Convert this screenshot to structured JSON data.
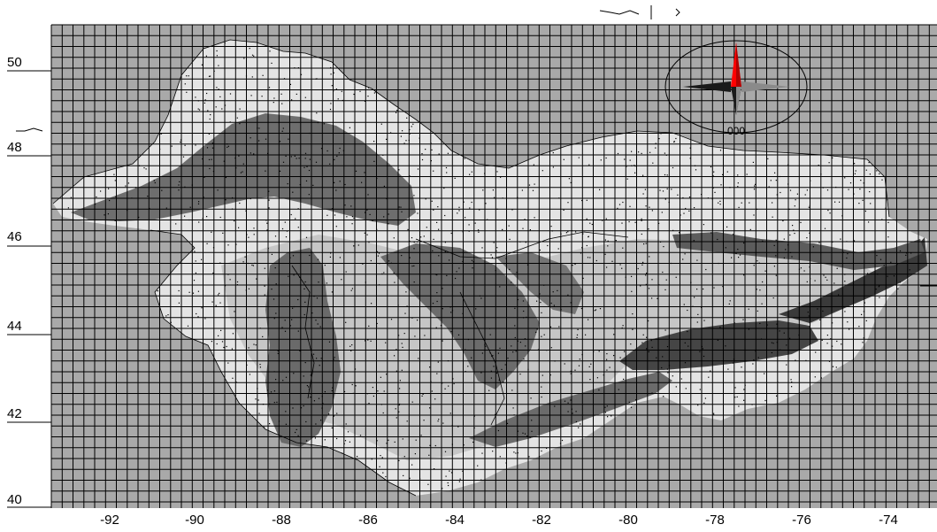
{
  "map": {
    "lat_labels": [
      "50",
      "48",
      "46",
      "44",
      "42",
      "40"
    ],
    "lon_labels": [
      "-92",
      "-90",
      "-88",
      "-86",
      "-84",
      "-82",
      "-80",
      "-78",
      "-76",
      "-74"
    ],
    "compass_label": "000",
    "colors": {
      "background": "#ffffff",
      "map_fill": "#a9a9a9",
      "grid_line": "#000000",
      "land_light": "#e6e6e6",
      "land_mid": "#c8c8c8",
      "lake_dark": "#707070",
      "lake_darker": "#505050",
      "river_darkest": "#2a2a2a",
      "compass_red": "#ff0000",
      "compass_dark": "#1a1a1a",
      "compass_grey": "#8a8a8a"
    },
    "icons": [
      "compass-rose-icon",
      "north-arrow-icon"
    ]
  }
}
